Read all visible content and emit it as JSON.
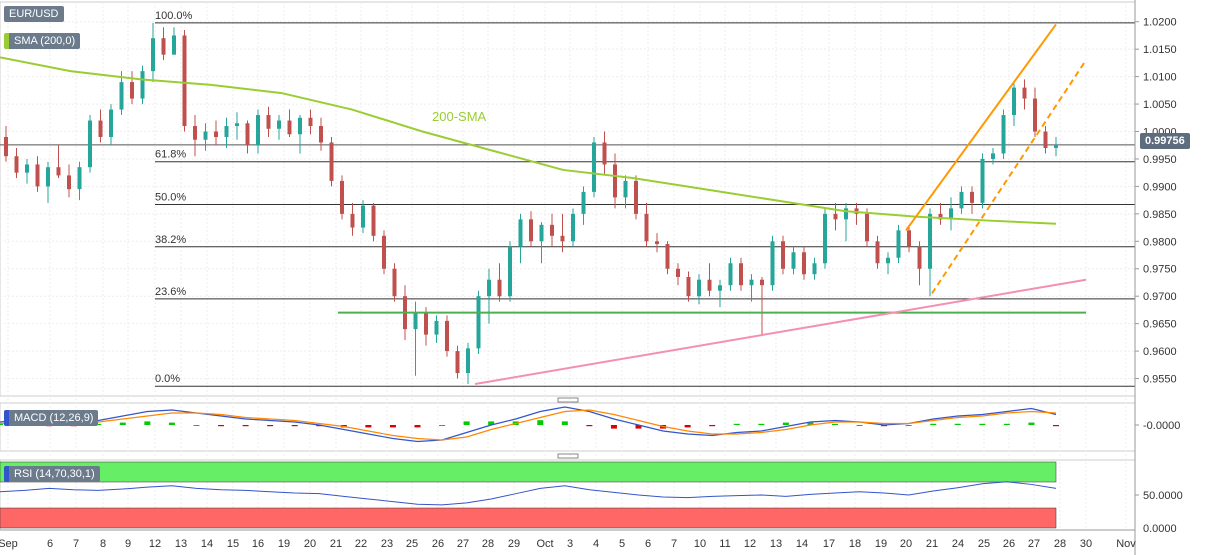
{
  "symbol": "EUR/USD",
  "sma_badge": "SMA (200,0)",
  "macd_badge": "MACD (12,26,9)",
  "rsi_badge": "RSI (14,70,30,1)",
  "price_tag": "0.99756",
  "annotation_sma": "200-SMA",
  "colors": {
    "up": "#26a69a",
    "down": "#c0504d",
    "sma": "#9acd32",
    "orange": "#ff9900",
    "pink": "#f48fb1",
    "support": "#4caf50",
    "macd_line": "#3355cc",
    "signal_line": "#ff8800",
    "rsi_line": "#3355cc",
    "rsi_high": "#66ee66",
    "rsi_low": "#ff6666"
  },
  "chart_data": [
    {
      "type": "candlestick",
      "title": "EUR/USD",
      "ylim": [
        0.952,
        1.0225
      ],
      "y_ticks": [
        "1.0200",
        "1.0150",
        "1.0100",
        "1.0050",
        "1.0000",
        "0.9950",
        "0.9900",
        "0.9850",
        "0.9800",
        "0.9750",
        "0.9700",
        "0.9650",
        "0.9600",
        "0.9550"
      ],
      "x_ticks": [
        "Sep",
        "6",
        "7",
        "8",
        "9",
        "12",
        "13",
        "14",
        "15",
        "16",
        "19",
        "20",
        "21",
        "22",
        "23",
        "25",
        "26",
        "27",
        "28",
        "29",
        "Oct",
        "3",
        "4",
        "5",
        "6",
        "7",
        "10",
        "11",
        "12",
        "13",
        "14",
        "17",
        "18",
        "19",
        "20",
        "21",
        "24",
        "25",
        "26",
        "27",
        "28",
        "30",
        "Nov"
      ],
      "fibonacci": [
        {
          "label": "100.0%",
          "value": 1.0198
        },
        {
          "label": "61.8%",
          "value": 0.9945
        },
        {
          "label": "50.0%",
          "value": 0.9867
        },
        {
          "label": "38.2%",
          "value": 0.979
        },
        {
          "label": "23.6%",
          "value": 0.9695
        },
        {
          "label": "0.0%",
          "value": 0.9536
        }
      ],
      "horizontal_support": 0.967,
      "sma200": [
        1.0135,
        1.011,
        1.0095,
        1.0085,
        1.007,
        1.004,
        1.0,
        0.9965,
        0.993,
        0.9915,
        0.9895,
        0.9875,
        0.9855,
        0.9845,
        0.9838,
        0.9832
      ],
      "last_price": 0.99756,
      "candles": [
        [
          0.999,
          1.001,
          0.9945,
          0.9955
        ],
        [
          0.9955,
          0.997,
          0.9915,
          0.9925
        ],
        [
          0.9925,
          0.995,
          0.9905,
          0.994
        ],
        [
          0.994,
          0.9955,
          0.989,
          0.99
        ],
        [
          0.99,
          0.9945,
          0.987,
          0.9935
        ],
        [
          0.9935,
          0.9975,
          0.9915,
          0.992
        ],
        [
          0.992,
          0.994,
          0.988,
          0.9895
        ],
        [
          0.9895,
          0.9945,
          0.9875,
          0.9935
        ],
        [
          0.9935,
          1.003,
          0.9925,
          1.002
        ],
        [
          1.002,
          1.004,
          0.998,
          0.999
        ],
        [
          0.999,
          1.005,
          0.9975,
          1.004
        ],
        [
          1.004,
          1.011,
          1.003,
          1.009
        ],
        [
          1.009,
          1.011,
          1.005,
          1.006
        ],
        [
          1.006,
          1.012,
          1.005,
          1.011
        ],
        [
          1.011,
          1.0198,
          1.009,
          1.017
        ],
        [
          1.017,
          1.019,
          1.013,
          1.014
        ],
        [
          1.014,
          1.019,
          1.014,
          1.0175
        ],
        [
          1.0175,
          1.0185,
          1.0,
          1.001
        ],
        [
          1.001,
          1.003,
          0.9955,
          0.9985
        ],
        [
          0.9985,
          1.0015,
          0.9965,
          1.0
        ],
        [
          1.0,
          1.002,
          0.9975,
          0.999
        ],
        [
          0.999,
          1.0025,
          0.997,
          1.001
        ],
        [
          1.001,
          1.0035,
          0.9985,
          1.0015
        ],
        [
          1.0015,
          1.002,
          0.996,
          0.9975
        ],
        [
          0.9975,
          1.004,
          0.996,
          1.003
        ],
        [
          1.003,
          1.0045,
          0.999,
          1.0005
        ],
        [
          1.0005,
          1.003,
          0.9985,
          1.002
        ],
        [
          1.002,
          1.004,
          0.999,
          0.9995
        ],
        [
          0.9995,
          1.003,
          0.996,
          1.0025
        ],
        [
          1.0025,
          1.004,
          0.9995,
          1.001
        ],
        [
          1.001,
          1.0025,
          0.9965,
          0.998
        ],
        [
          0.998,
          0.999,
          0.99,
          0.991
        ],
        [
          0.991,
          0.992,
          0.984,
          0.985
        ],
        [
          0.985,
          0.987,
          0.981,
          0.9825
        ],
        [
          0.9825,
          0.9875,
          0.9815,
          0.9865
        ],
        [
          0.9865,
          0.987,
          0.98,
          0.981
        ],
        [
          0.981,
          0.982,
          0.974,
          0.975
        ],
        [
          0.975,
          0.976,
          0.969,
          0.97
        ],
        [
          0.97,
          0.972,
          0.962,
          0.964
        ],
        [
          0.964,
          0.969,
          0.9555,
          0.967
        ],
        [
          0.967,
          0.968,
          0.961,
          0.963
        ],
        [
          0.963,
          0.9665,
          0.9615,
          0.9655
        ],
        [
          0.9655,
          0.9665,
          0.959,
          0.96
        ],
        [
          0.96,
          0.961,
          0.955,
          0.956
        ],
        [
          0.956,
          0.9615,
          0.954,
          0.9605
        ],
        [
          0.9605,
          0.971,
          0.9595,
          0.97
        ],
        [
          0.97,
          0.975,
          0.965,
          0.973
        ],
        [
          0.973,
          0.976,
          0.969,
          0.97
        ],
        [
          0.97,
          0.98,
          0.969,
          0.979
        ],
        [
          0.979,
          0.985,
          0.976,
          0.984
        ],
        [
          0.984,
          0.9855,
          0.979,
          0.98
        ],
        [
          0.98,
          0.9835,
          0.976,
          0.983
        ],
        [
          0.983,
          0.985,
          0.979,
          0.981
        ],
        [
          0.981,
          0.985,
          0.978,
          0.98
        ],
        [
          0.98,
          0.986,
          0.979,
          0.985
        ],
        [
          0.985,
          0.99,
          0.983,
          0.989
        ],
        [
          0.989,
          0.999,
          0.988,
          0.998
        ],
        [
          0.998,
          1.0,
          0.992,
          0.994
        ],
        [
          0.994,
          0.996,
          0.986,
          0.988
        ],
        [
          0.988,
          0.992,
          0.986,
          0.991
        ],
        [
          0.991,
          0.992,
          0.984,
          0.985
        ],
        [
          0.985,
          0.987,
          0.979,
          0.98
        ],
        [
          0.98,
          0.9815,
          0.978,
          0.9795
        ],
        [
          0.9795,
          0.98,
          0.974,
          0.975
        ],
        [
          0.975,
          0.976,
          0.972,
          0.9735
        ],
        [
          0.9735,
          0.9745,
          0.969,
          0.97
        ],
        [
          0.97,
          0.974,
          0.9685,
          0.973
        ],
        [
          0.973,
          0.976,
          0.97,
          0.971
        ],
        [
          0.971,
          0.973,
          0.968,
          0.972
        ],
        [
          0.972,
          0.977,
          0.971,
          0.976
        ],
        [
          0.976,
          0.977,
          0.971,
          0.972
        ],
        [
          0.972,
          0.974,
          0.969,
          0.973
        ],
        [
          0.973,
          0.9735,
          0.963,
          0.972
        ],
        [
          0.972,
          0.981,
          0.971,
          0.98
        ],
        [
          0.98,
          0.981,
          0.974,
          0.975
        ],
        [
          0.975,
          0.979,
          0.974,
          0.978
        ],
        [
          0.978,
          0.979,
          0.973,
          0.974
        ],
        [
          0.974,
          0.977,
          0.973,
          0.976
        ],
        [
          0.976,
          0.986,
          0.975,
          0.985
        ],
        [
          0.985,
          0.987,
          0.982,
          0.984
        ],
        [
          0.984,
          0.987,
          0.98,
          0.986
        ],
        [
          0.986,
          0.987,
          0.983,
          0.985
        ],
        [
          0.985,
          0.986,
          0.979,
          0.98
        ],
        [
          0.98,
          0.981,
          0.975,
          0.976
        ],
        [
          0.976,
          0.978,
          0.974,
          0.977
        ],
        [
          0.977,
          0.983,
          0.976,
          0.982
        ],
        [
          0.982,
          0.983,
          0.978,
          0.979
        ],
        [
          0.979,
          0.98,
          0.972,
          0.975
        ],
        [
          0.975,
          0.986,
          0.97,
          0.985
        ],
        [
          0.985,
          0.987,
          0.983,
          0.984
        ],
        [
          0.984,
          0.988,
          0.982,
          0.986
        ],
        [
          0.986,
          0.99,
          0.985,
          0.989
        ],
        [
          0.989,
          0.99,
          0.985,
          0.987
        ],
        [
          0.987,
          0.996,
          0.986,
          0.995
        ],
        [
          0.995,
          0.997,
          0.994,
          0.996
        ],
        [
          0.996,
          1.004,
          0.995,
          1.003
        ],
        [
          1.003,
          1.009,
          1.001,
          1.008
        ],
        [
          1.008,
          1.0095,
          1.004,
          1.006
        ],
        [
          1.006,
          1.008,
          0.999,
          1.0
        ],
        [
          1.0,
          1.001,
          0.996,
          0.997
        ],
        [
          0.997,
          0.999,
          0.9955,
          0.99756
        ]
      ]
    },
    {
      "type": "line",
      "title": "MACD (12,26,9)",
      "y_ticks": [
        "-0.0000"
      ],
      "series": [
        {
          "name": "MACD",
          "values": [
            0.2,
            0.4,
            0.1,
            0.0,
            0.3,
            0.6,
            0.9,
            1.0,
            0.8,
            0.6,
            0.4,
            0.3,
            0.2,
            0.0,
            -0.3,
            -0.6,
            -0.9,
            -1.1,
            -1.0,
            -0.5,
            0.0,
            0.4,
            0.9,
            1.2,
            0.9,
            0.4,
            0.0,
            -0.4,
            -0.6,
            -0.7,
            -0.5,
            -0.4,
            -0.1,
            0.2,
            0.3,
            0.2,
            0.0,
            0.1,
            0.4,
            0.6,
            0.7,
            0.9,
            1.1,
            0.7
          ]
        },
        {
          "name": "Signal",
          "values": [
            0.1,
            0.2,
            0.2,
            0.1,
            0.2,
            0.4,
            0.6,
            0.8,
            0.8,
            0.7,
            0.5,
            0.4,
            0.3,
            0.1,
            -0.1,
            -0.4,
            -0.7,
            -0.9,
            -1.0,
            -0.8,
            -0.3,
            0.1,
            0.5,
            0.9,
            1.0,
            0.7,
            0.3,
            -0.1,
            -0.4,
            -0.6,
            -0.6,
            -0.5,
            -0.3,
            0.0,
            0.2,
            0.2,
            0.1,
            0.1,
            0.3,
            0.5,
            0.6,
            0.8,
            0.9,
            0.8
          ]
        }
      ]
    },
    {
      "type": "line",
      "title": "RSI (14,70,30,1)",
      "y_ticks": [
        "50.0000",
        "0.0000"
      ],
      "bands": {
        "high": 70,
        "low": 30
      },
      "series": [
        {
          "name": "RSI",
          "values": [
            55,
            57,
            60,
            58,
            57,
            59,
            62,
            64,
            60,
            58,
            57,
            55,
            53,
            52,
            48,
            44,
            40,
            36,
            35,
            38,
            44,
            52,
            60,
            64,
            58,
            54,
            50,
            47,
            46,
            48,
            49,
            50,
            48,
            51,
            53,
            55,
            53,
            50,
            56,
            61,
            67,
            70,
            66,
            60
          ]
        }
      ]
    }
  ]
}
